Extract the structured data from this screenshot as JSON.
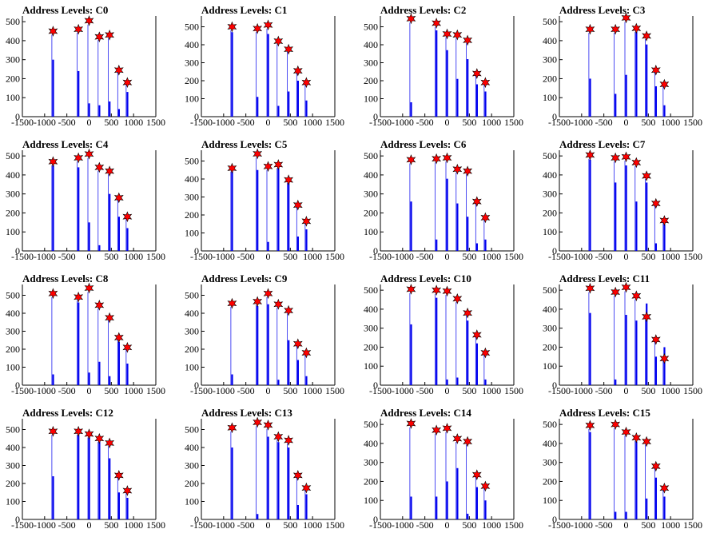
{
  "title_prefix": "Address Levels:",
  "colors": {
    "bar": "#0000ee",
    "marker": "#ff0000",
    "marker_edge": "#000000",
    "axis": "#000000"
  },
  "chart_data": [
    {
      "type": "bar",
      "title": "Address Levels: C0",
      "xlim": [
        -1500,
        1500
      ],
      "ylim": [
        0,
        530
      ],
      "xticks": [
        -1500,
        -1000,
        -500,
        0,
        500,
        1000,
        1500
      ],
      "yticks": [
        0,
        100,
        200,
        300,
        400,
        500
      ],
      "peaks": [
        {
          "x": -810,
          "bar": 300,
          "star": 450
        },
        {
          "x": -240,
          "bar": 240,
          "star": 460
        },
        {
          "x": 0,
          "bar": 70,
          "star": 505
        },
        {
          "x": 230,
          "bar": 60,
          "star": 420
        },
        {
          "x": 460,
          "bar": 80,
          "star": 430
        },
        {
          "x": 670,
          "bar": 40,
          "star": 245
        },
        {
          "x": 860,
          "bar": 130,
          "star": 180
        }
      ]
    },
    {
      "type": "bar",
      "title": "Address Levels: C1",
      "xlim": [
        -1500,
        1500
      ],
      "ylim": [
        0,
        560
      ],
      "xticks": [
        -1500,
        -1000,
        -500,
        0,
        500,
        1000,
        1500
      ],
      "yticks": [
        0,
        100,
        200,
        300,
        400,
        500
      ],
      "peaks": [
        {
          "x": -810,
          "bar": 470,
          "star": 500
        },
        {
          "x": -240,
          "bar": 110,
          "star": 490
        },
        {
          "x": 0,
          "bar": 460,
          "star": 510
        },
        {
          "x": 230,
          "bar": 60,
          "star": 420
        },
        {
          "x": 460,
          "bar": 140,
          "star": 375
        },
        {
          "x": 670,
          "bar": 200,
          "star": 255
        },
        {
          "x": 860,
          "bar": 90,
          "star": 190
        }
      ]
    },
    {
      "type": "bar",
      "title": "Address Levels: C2",
      "xlim": [
        -1500,
        1500
      ],
      "ylim": [
        0,
        560
      ],
      "xticks": [
        -1500,
        -1000,
        -500,
        0,
        500,
        1000,
        1500
      ],
      "yticks": [
        0,
        100,
        200,
        300,
        400,
        500
      ],
      "peaks": [
        {
          "x": -810,
          "bar": 80,
          "star": 545
        },
        {
          "x": -240,
          "bar": 480,
          "star": 520
        },
        {
          "x": 0,
          "bar": 370,
          "star": 460
        },
        {
          "x": 230,
          "bar": 210,
          "star": 455
        },
        {
          "x": 460,
          "bar": 320,
          "star": 425
        },
        {
          "x": 670,
          "bar": 180,
          "star": 240
        },
        {
          "x": 860,
          "bar": 140,
          "star": 190
        }
      ]
    },
    {
      "type": "bar",
      "title": "Address Levels: C3",
      "xlim": [
        -1500,
        1500
      ],
      "ylim": [
        0,
        530
      ],
      "xticks": [
        -1500,
        -1000,
        -500,
        0,
        500,
        1000,
        1500
      ],
      "yticks": [
        0,
        100,
        200,
        300,
        400,
        500
      ],
      "peaks": [
        {
          "x": -810,
          "bar": 200,
          "star": 460
        },
        {
          "x": -240,
          "bar": 120,
          "star": 460
        },
        {
          "x": 0,
          "bar": 220,
          "star": 520
        },
        {
          "x": 230,
          "bar": 450,
          "star": 465
        },
        {
          "x": 460,
          "bar": 380,
          "star": 425
        },
        {
          "x": 670,
          "bar": 160,
          "star": 245
        },
        {
          "x": 860,
          "bar": 60,
          "star": 170
        }
      ]
    },
    {
      "type": "bar",
      "title": "Address Levels: C4",
      "xlim": [
        -1500,
        1500
      ],
      "ylim": [
        0,
        530
      ],
      "xticks": [
        -1500,
        -1000,
        -500,
        0,
        500,
        1000,
        1500
      ],
      "yticks": [
        0,
        100,
        200,
        300,
        400,
        500
      ],
      "peaks": [
        {
          "x": -810,
          "bar": 450,
          "star": 470
        },
        {
          "x": -240,
          "bar": 440,
          "star": 490
        },
        {
          "x": 0,
          "bar": 150,
          "star": 510
        },
        {
          "x": 230,
          "bar": 30,
          "star": 440
        },
        {
          "x": 460,
          "bar": 300,
          "star": 420
        },
        {
          "x": 670,
          "bar": 180,
          "star": 280
        },
        {
          "x": 860,
          "bar": 120,
          "star": 180
        }
      ]
    },
    {
      "type": "bar",
      "title": "Address Levels: C5",
      "xlim": [
        -1500,
        1500
      ],
      "ylim": [
        0,
        560
      ],
      "xticks": [
        -1500,
        -1000,
        -500,
        0,
        500,
        1000,
        1500
      ],
      "yticks": [
        0,
        100,
        200,
        300,
        400,
        500
      ],
      "peaks": [
        {
          "x": -810,
          "bar": 450,
          "star": 460
        },
        {
          "x": -240,
          "bar": 450,
          "star": 540
        },
        {
          "x": 0,
          "bar": 50,
          "star": 470
        },
        {
          "x": 230,
          "bar": 470,
          "star": 480
        },
        {
          "x": 460,
          "bar": 380,
          "star": 395
        },
        {
          "x": 670,
          "bar": 80,
          "star": 255
        },
        {
          "x": 860,
          "bar": 120,
          "star": 165
        }
      ]
    },
    {
      "type": "bar",
      "title": "Address Levels: C6",
      "xlim": [
        -1500,
        1500
      ],
      "ylim": [
        0,
        530
      ],
      "xticks": [
        -1500,
        -1000,
        -500,
        0,
        500,
        1000,
        1500
      ],
      "yticks": [
        0,
        100,
        200,
        300,
        400,
        500
      ],
      "peaks": [
        {
          "x": -810,
          "bar": 260,
          "star": 480
        },
        {
          "x": -240,
          "bar": 60,
          "star": 485
        },
        {
          "x": 0,
          "bar": 380,
          "star": 490
        },
        {
          "x": 230,
          "bar": 250,
          "star": 430
        },
        {
          "x": 460,
          "bar": 180,
          "star": 420
        },
        {
          "x": 670,
          "bar": 40,
          "star": 260
        },
        {
          "x": 860,
          "bar": 60,
          "star": 175
        }
      ]
    },
    {
      "type": "bar",
      "title": "Address Levels: C7",
      "xlim": [
        -1500,
        1500
      ],
      "ylim": [
        0,
        530
      ],
      "xticks": [
        -1500,
        -1000,
        -500,
        0,
        500,
        1000,
        1500
      ],
      "yticks": [
        0,
        100,
        200,
        300,
        400,
        500
      ],
      "peaks": [
        {
          "x": -810,
          "bar": 480,
          "star": 505
        },
        {
          "x": -240,
          "bar": 360,
          "star": 490
        },
        {
          "x": 0,
          "bar": 450,
          "star": 495
        },
        {
          "x": 230,
          "bar": 260,
          "star": 465
        },
        {
          "x": 460,
          "bar": 360,
          "star": 395
        },
        {
          "x": 670,
          "bar": 40,
          "star": 250
        },
        {
          "x": 860,
          "bar": 140,
          "star": 160
        }
      ]
    },
    {
      "type": "bar",
      "title": "Address Levels: C8",
      "xlim": [
        -1500,
        1500
      ],
      "ylim": [
        0,
        560
      ],
      "xticks": [
        -1500,
        -1000,
        -500,
        0,
        500,
        1000,
        1500
      ],
      "yticks": [
        0,
        100,
        200,
        300,
        400,
        500
      ],
      "peaks": [
        {
          "x": -810,
          "bar": 60,
          "star": 510
        },
        {
          "x": -240,
          "bar": 460,
          "star": 490
        },
        {
          "x": 0,
          "bar": 70,
          "star": 540
        },
        {
          "x": 230,
          "bar": 130,
          "star": 445
        },
        {
          "x": 460,
          "bar": 50,
          "star": 375
        },
        {
          "x": 670,
          "bar": 240,
          "star": 265
        },
        {
          "x": 860,
          "bar": 120,
          "star": 210
        }
      ]
    },
    {
      "type": "bar",
      "title": "Address Levels: C9",
      "xlim": [
        -1500,
        1500
      ],
      "ylim": [
        0,
        560
      ],
      "xticks": [
        -1500,
        -1000,
        -500,
        0,
        500,
        1000,
        1500
      ],
      "yticks": [
        0,
        100,
        200,
        300,
        400,
        500
      ],
      "peaks": [
        {
          "x": -810,
          "bar": 60,
          "star": 455
        },
        {
          "x": -240,
          "bar": 440,
          "star": 465
        },
        {
          "x": 0,
          "bar": 450,
          "star": 510
        },
        {
          "x": 230,
          "bar": 30,
          "star": 450
        },
        {
          "x": 460,
          "bar": 250,
          "star": 415
        },
        {
          "x": 670,
          "bar": 140,
          "star": 230
        },
        {
          "x": 860,
          "bar": 50,
          "star": 180
        }
      ]
    },
    {
      "type": "bar",
      "title": "Address Levels: C10",
      "xlim": [
        -1500,
        1500
      ],
      "ylim": [
        0,
        530
      ],
      "xticks": [
        -1500,
        -1000,
        -500,
        0,
        500,
        1000,
        1500
      ],
      "yticks": [
        0,
        100,
        200,
        300,
        400,
        500
      ],
      "peaks": [
        {
          "x": -810,
          "bar": 320,
          "star": 505
        },
        {
          "x": -240,
          "bar": 460,
          "star": 500
        },
        {
          "x": 0,
          "bar": 30,
          "star": 495
        },
        {
          "x": 230,
          "bar": 40,
          "star": 455
        },
        {
          "x": 460,
          "bar": 340,
          "star": 380
        },
        {
          "x": 670,
          "bar": 220,
          "star": 265
        },
        {
          "x": 860,
          "bar": 30,
          "star": 170
        }
      ]
    },
    {
      "type": "bar",
      "title": "Address Levels: C11",
      "xlim": [
        -1500,
        1500
      ],
      "ylim": [
        0,
        530
      ],
      "xticks": [
        -1500,
        -1000,
        -500,
        0,
        500,
        1000,
        1500
      ],
      "yticks": [
        0,
        100,
        200,
        300,
        400,
        500
      ],
      "peaks": [
        {
          "x": -810,
          "bar": 380,
          "star": 510
        },
        {
          "x": -240,
          "bar": 30,
          "star": 490
        },
        {
          "x": 0,
          "bar": 370,
          "star": 515
        },
        {
          "x": 230,
          "bar": 340,
          "star": 470
        },
        {
          "x": 460,
          "bar": 430,
          "star": 360
        },
        {
          "x": 670,
          "bar": 150,
          "star": 240
        },
        {
          "x": 860,
          "bar": 200,
          "star": 140
        }
      ]
    },
    {
      "type": "bar",
      "title": "Address Levels: C12",
      "xlim": [
        -1500,
        1500
      ],
      "ylim": [
        0,
        560
      ],
      "xticks": [
        -1500,
        -1000,
        -500,
        0,
        500,
        1000,
        1500
      ],
      "yticks": [
        0,
        100,
        200,
        300,
        400,
        500
      ],
      "peaks": [
        {
          "x": -810,
          "bar": 240,
          "star": 490
        },
        {
          "x": -240,
          "bar": 470,
          "star": 490
        },
        {
          "x": 0,
          "bar": 460,
          "star": 475
        },
        {
          "x": 230,
          "bar": 440,
          "star": 450
        },
        {
          "x": 460,
          "bar": 340,
          "star": 425
        },
        {
          "x": 670,
          "bar": 150,
          "star": 245
        },
        {
          "x": 860,
          "bar": 120,
          "star": 160
        }
      ]
    },
    {
      "type": "bar",
      "title": "Address Levels: C13",
      "xlim": [
        -1500,
        1500
      ],
      "ylim": [
        0,
        560
      ],
      "xticks": [
        -1500,
        -1000,
        -500,
        0,
        500,
        1000,
        1500
      ],
      "yticks": [
        0,
        100,
        200,
        300,
        400,
        500
      ],
      "peaks": [
        {
          "x": -810,
          "bar": 400,
          "star": 510
        },
        {
          "x": -240,
          "bar": 30,
          "star": 540
        },
        {
          "x": 0,
          "bar": 460,
          "star": 525
        },
        {
          "x": 230,
          "bar": 430,
          "star": 460
        },
        {
          "x": 460,
          "bar": 400,
          "star": 440
        },
        {
          "x": 670,
          "bar": 80,
          "star": 245
        },
        {
          "x": 860,
          "bar": 140,
          "star": 175
        }
      ]
    },
    {
      "type": "bar",
      "title": "Address Levels: C14",
      "xlim": [
        -1500,
        1500
      ],
      "ylim": [
        0,
        530
      ],
      "xticks": [
        -1500,
        -1000,
        -500,
        0,
        500,
        1000,
        1500
      ],
      "yticks": [
        0,
        100,
        200,
        300,
        400,
        500
      ],
      "peaks": [
        {
          "x": -810,
          "bar": 120,
          "star": 505
        },
        {
          "x": -240,
          "bar": 120,
          "star": 470
        },
        {
          "x": 0,
          "bar": 200,
          "star": 480
        },
        {
          "x": 230,
          "bar": 270,
          "star": 425
        },
        {
          "x": 460,
          "bar": 30,
          "star": 410
        },
        {
          "x": 670,
          "bar": 170,
          "star": 235
        },
        {
          "x": 860,
          "bar": 100,
          "star": 175
        }
      ]
    },
    {
      "type": "bar",
      "title": "Address Levels: C15",
      "xlim": [
        -1500,
        1500
      ],
      "ylim": [
        0,
        530
      ],
      "xticks": [
        -1500,
        -1000,
        -500,
        0,
        500,
        1000,
        1500
      ],
      "yticks": [
        0,
        100,
        200,
        300,
        400,
        500
      ],
      "peaks": [
        {
          "x": -810,
          "bar": 460,
          "star": 495
        },
        {
          "x": -240,
          "bar": 40,
          "star": 500
        },
        {
          "x": 0,
          "bar": 40,
          "star": 460
        },
        {
          "x": 230,
          "bar": 410,
          "star": 430
        },
        {
          "x": 460,
          "bar": 110,
          "star": 410
        },
        {
          "x": 670,
          "bar": 220,
          "star": 280
        },
        {
          "x": 860,
          "bar": 120,
          "star": 165
        }
      ]
    }
  ]
}
